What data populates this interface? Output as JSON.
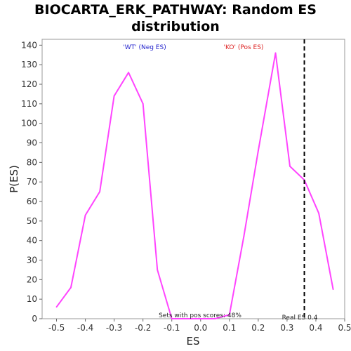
{
  "chart_data": {
    "type": "line",
    "title_line1": "BIOCARTA_ERK_PATHWAY: Random ES",
    "title_line2": "distribution",
    "xlabel": "ES",
    "ylabel": "P(ES)",
    "xlim": [
      -0.55,
      0.5
    ],
    "ylim": [
      0,
      143
    ],
    "x_ticks": [
      -0.5,
      -0.4,
      -0.3,
      -0.2,
      -0.1,
      0.0,
      0.1,
      0.2,
      0.3,
      0.4,
      0.5
    ],
    "x_tick_labels": [
      "-0.5",
      "-0.4",
      "-0.3",
      "-0.2",
      "-0.1",
      "0.0",
      "0.1",
      "0.2",
      "0.3",
      "0.4",
      "0.5"
    ],
    "y_ticks": [
      0,
      10,
      20,
      30,
      40,
      50,
      60,
      70,
      80,
      90,
      100,
      110,
      120,
      130,
      140
    ],
    "y_tick_labels": [
      "0",
      "10",
      "20",
      "30",
      "40",
      "50",
      "60",
      "70",
      "80",
      "90",
      "100",
      "110",
      "120",
      "130",
      "140"
    ],
    "grid": false,
    "series": [
      {
        "color": "#ff44ff",
        "x": [
          -0.5,
          -0.45,
          -0.4,
          -0.35,
          -0.3,
          -0.25,
          -0.2,
          -0.15,
          -0.1,
          -0.05,
          0.0,
          0.05,
          0.1,
          0.15,
          0.2,
          0.26,
          0.31,
          0.36,
          0.41,
          0.46
        ],
        "y": [
          6,
          16,
          53,
          65,
          114,
          126,
          110,
          25,
          0,
          0,
          0,
          0,
          2,
          42,
          86,
          136,
          78,
          71,
          54,
          15
        ]
      }
    ],
    "real_es": 0.36,
    "annotations": {
      "wt_label": "'WT' (Neg ES)",
      "wt_color": "#2222cc",
      "ko_label": "'KO' (Pos ES)",
      "ko_color": "#dd2222",
      "pos_scores": "Sets with pos scores: 48%",
      "real_es_label": "Real ES 0.4"
    }
  }
}
